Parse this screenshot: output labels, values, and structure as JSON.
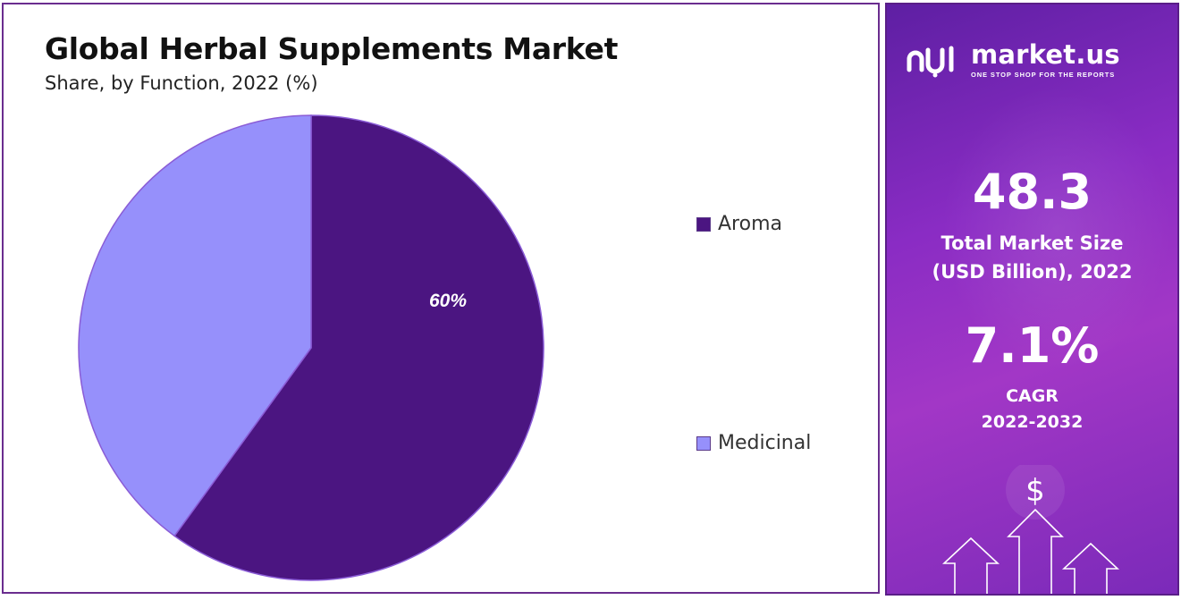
{
  "chart_data": {
    "type": "pie",
    "title": "Global Herbal Supplements Market",
    "subtitle": "Share, by Function, 2022 (%)",
    "slices": [
      {
        "name": "Aroma",
        "value": 60,
        "label": "60%",
        "color": "#4b1581"
      },
      {
        "name": "Medicinal",
        "value": 40,
        "label": "",
        "color": "#9690fb"
      }
    ],
    "legend": "right"
  },
  "sidebar": {
    "brand": {
      "name": "market.us",
      "tagline": "ONE STOP SHOP FOR THE REPORTS"
    },
    "market_size": {
      "value": "48.3",
      "label_line1": "Total Market Size",
      "label_line2": "(USD Billion), 2022"
    },
    "cagr": {
      "value": "7.1%",
      "label_line1": "CAGR",
      "label_line2": "2022-2032"
    },
    "currency_symbol": "$"
  },
  "colors": {
    "panel_start": "#5e1fa3",
    "panel_end": "#a237c6",
    "border": "#6a2d8f"
  }
}
